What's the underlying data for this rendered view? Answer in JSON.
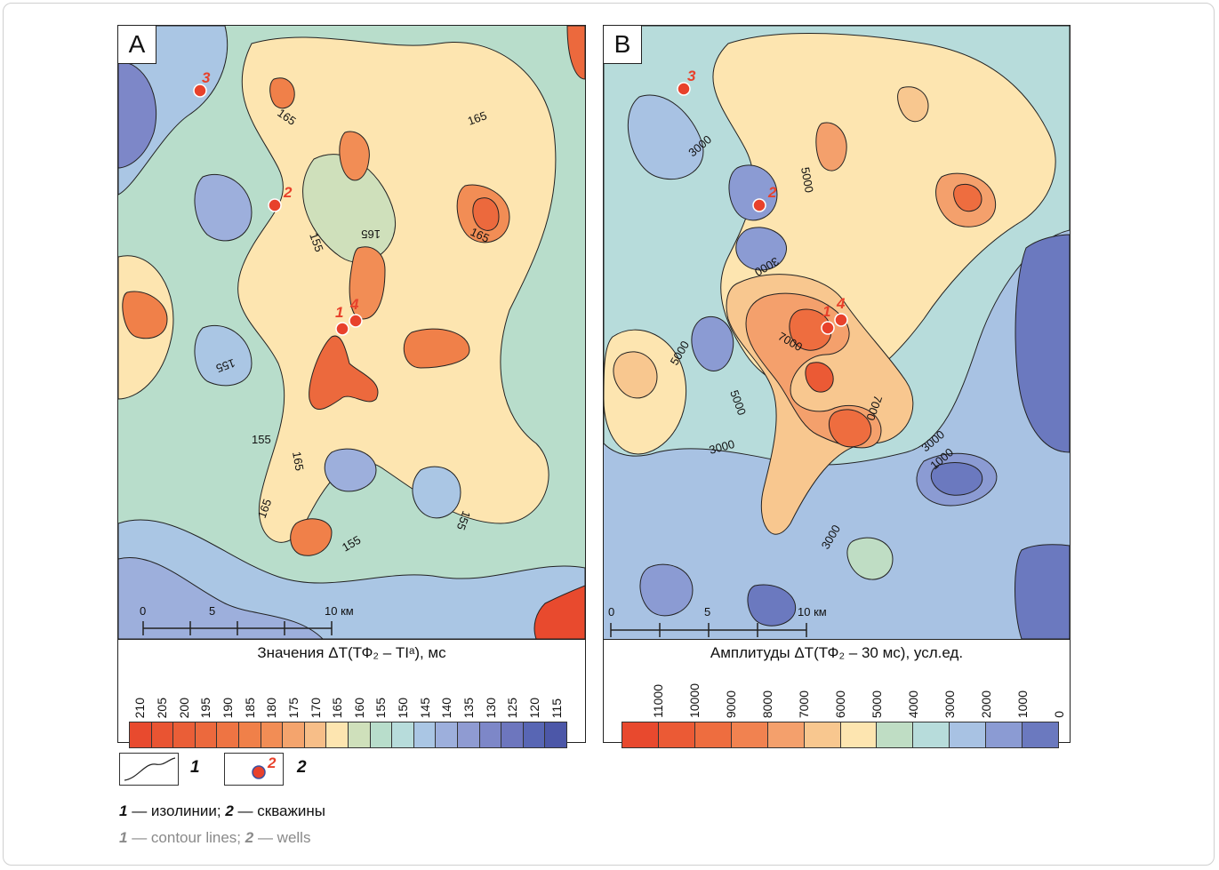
{
  "panelA": {
    "letter": "A",
    "legend_title": "Значения ΔT(ТФ₂ – TIᵃ), мс",
    "legend_values": [
      "210",
      "205",
      "200",
      "195",
      "190",
      "185",
      "180",
      "175",
      "170",
      "165",
      "160",
      "155",
      "150",
      "145",
      "140",
      "135",
      "130",
      "125",
      "120",
      "115"
    ],
    "legend_colors": [
      "#e84a2e",
      "#e95432",
      "#ea5e37",
      "#ec693d",
      "#ee7443",
      "#f08049",
      "#f28d55",
      "#f4a46d",
      "#f7be88",
      "#fde5b0",
      "#cfe0bb",
      "#b8ddcb",
      "#b7dcdb",
      "#aac6e4",
      "#9dafdc",
      "#8f9bd2",
      "#7d87c8",
      "#6d76be",
      "#5866b4",
      "#4c57a8"
    ],
    "contour_labels": [
      "165",
      "165",
      "165",
      "165",
      "155",
      "155",
      "155",
      "165",
      "155",
      "165",
      "155"
    ],
    "wells": [
      "3",
      "2",
      "1",
      "4"
    ],
    "scale": {
      "ticks": [
        "0",
        "5",
        "10 км"
      ]
    }
  },
  "panelB": {
    "letter": "B",
    "legend_title": "Амплитуды ΔT(ТФ₂ – 30 мс), усл.ед.",
    "legend_values": [
      "11000",
      "10000",
      "9000",
      "8000",
      "7000",
      "6000",
      "5000",
      "4000",
      "3000",
      "2000",
      "1000",
      "0"
    ],
    "legend_colors": [
      "#e8492e",
      "#eb5a35",
      "#ee6d3f",
      "#f18250",
      "#f4a06c",
      "#f8c78f",
      "#fde5b0",
      "#bfddc4",
      "#b7dcdb",
      "#a8c2e3",
      "#8b9bd3",
      "#6b79bf"
    ],
    "contour_labels": [
      "3000",
      "5000",
      "3000",
      "5000",
      "7000",
      "5000",
      "7000",
      "3000",
      "3000",
      "1000",
      "3000"
    ],
    "wells": [
      "3",
      "2",
      "1",
      "4"
    ],
    "scale": {
      "ticks": [
        "0",
        "5",
        "10 км"
      ]
    }
  },
  "key": {
    "item1": "1",
    "item2": "2",
    "item2_inner": "2"
  },
  "caption_ru": {
    "n1": "1",
    "t1": " — изолинии; ",
    "n2": "2",
    "t2": " — скважины"
  },
  "caption_en": {
    "n1": "1",
    "t1": " — contour lines; ",
    "n2": "2",
    "t2": " — wells"
  }
}
